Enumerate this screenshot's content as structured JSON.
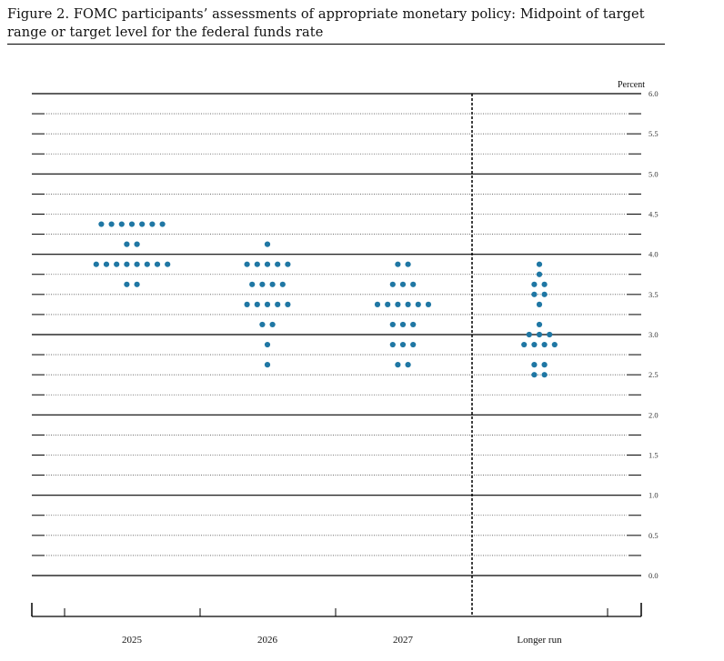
{
  "figure": {
    "title": "Figure 2.  FOMC participants’ assessments of appropriate monetary policy: Midpoint of target range or target level for the federal funds rate"
  },
  "chart_data": {
    "type": "scatter",
    "title": "Figure 2.  FOMC participants’ assessments of appropriate monetary policy: Midpoint of target range or target level for the federal funds rate",
    "ylabel": "Percent",
    "ylim": [
      0,
      6
    ],
    "y_ticks": [
      "6.0",
      "5.5",
      "5.0",
      "4.5",
      "4.0",
      "3.5",
      "3.0",
      "2.5",
      "2.0",
      "1.5",
      "1.0",
      "0.5",
      "0.0"
    ],
    "y_tick_values": [
      6.0,
      5.5,
      5.0,
      4.5,
      4.0,
      3.5,
      3.0,
      2.5,
      2.0,
      1.5,
      1.0,
      0.5,
      0.0
    ],
    "categories": [
      "2025",
      "2026",
      "2027",
      "Longer run"
    ],
    "dot_color": "#1f77a4",
    "gridline_color": "#000000",
    "series": [
      {
        "category": "2025",
        "points": [
          {
            "y": 4.375,
            "count": 7
          },
          {
            "y": 4.125,
            "count": 2
          },
          {
            "y": 3.875,
            "count": 8
          },
          {
            "y": 3.625,
            "count": 2
          }
        ]
      },
      {
        "category": "2026",
        "points": [
          {
            "y": 4.125,
            "count": 1
          },
          {
            "y": 3.875,
            "count": 5
          },
          {
            "y": 3.625,
            "count": 4
          },
          {
            "y": 3.375,
            "count": 5
          },
          {
            "y": 3.125,
            "count": 2
          },
          {
            "y": 2.875,
            "count": 1
          },
          {
            "y": 2.625,
            "count": 1
          }
        ]
      },
      {
        "category": "2027",
        "points": [
          {
            "y": 3.875,
            "count": 2
          },
          {
            "y": 3.625,
            "count": 3
          },
          {
            "y": 3.375,
            "count": 6
          },
          {
            "y": 3.125,
            "count": 3
          },
          {
            "y": 2.875,
            "count": 3
          },
          {
            "y": 2.625,
            "count": 2
          }
        ]
      },
      {
        "category": "Longer run",
        "points": [
          {
            "y": 3.875,
            "count": 1
          },
          {
            "y": 3.75,
            "count": 1
          },
          {
            "y": 3.625,
            "count": 2
          },
          {
            "y": 3.5,
            "count": 2
          },
          {
            "y": 3.375,
            "count": 1
          },
          {
            "y": 3.125,
            "count": 1
          },
          {
            "y": 3.0,
            "count": 3
          },
          {
            "y": 2.875,
            "count": 4
          },
          {
            "y": 2.625,
            "count": 2
          },
          {
            "y": 2.5,
            "count": 2
          }
        ]
      }
    ],
    "grid": true
  }
}
